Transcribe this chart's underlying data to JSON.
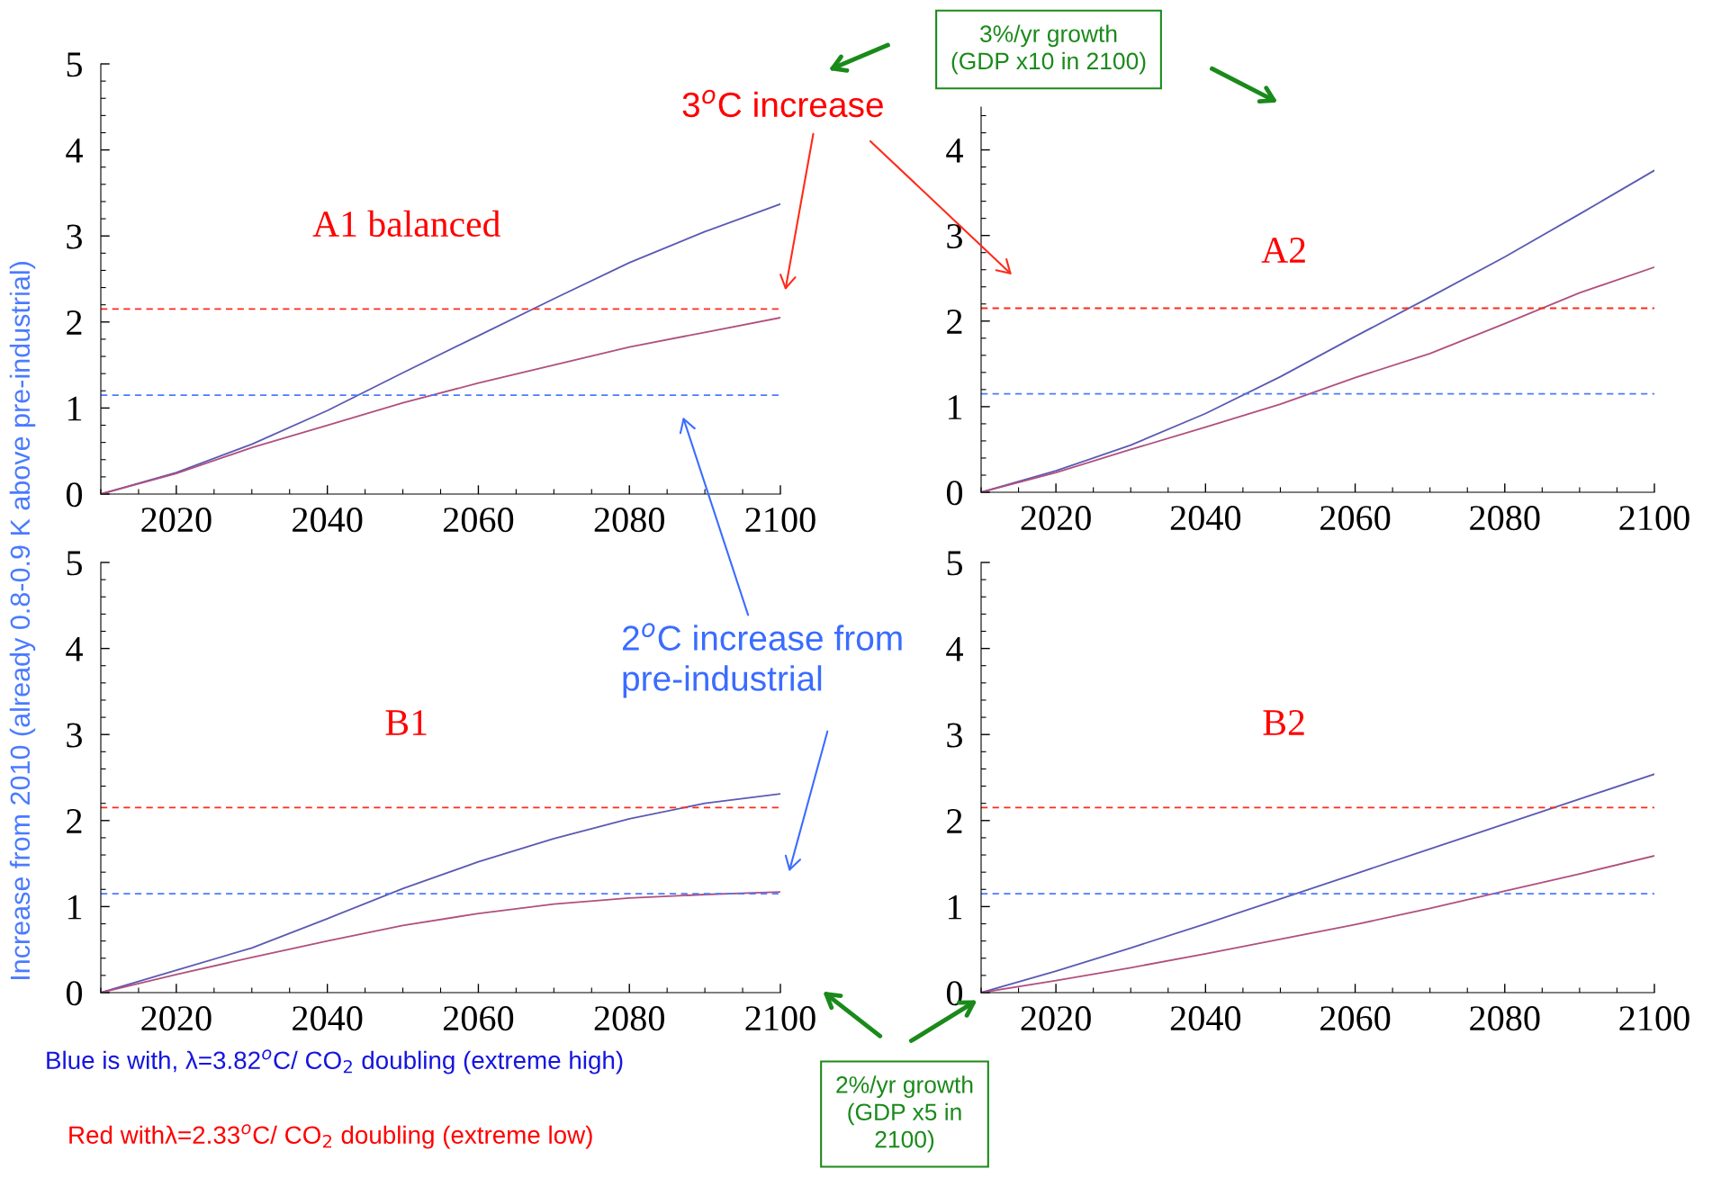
{
  "chart_data": [
    {
      "type": "line",
      "title": "A1 balanced",
      "ylabel": "Increase from 2010 (already 0.8-0.9 K above pre-industrial)",
      "annotations": [
        "3$^{o}$C increase",
        "3%/yr growth\n(GDP x10 in 2100)",
        "2$^{o}$C increase from\npre-industrial",
        "2%/yr growth\n(GDP x5 in\n2100)",
        "Blue is with, λ=3.82$^{o}$C/ CO$_{2}$ doubling (extreme high)",
        "Red withλ=2.33$^{o}$C/ CO$_{2}$ doubling (extreme low)"
      ],
      "x": [
        2010,
        2020,
        2030,
        2040,
        2050,
        2060,
        2070,
        2080,
        2090,
        2100
      ],
      "series": [
        {
          "color": "#5a5ab4",
          "values": [
            0,
            0.25,
            0.58,
            0.97,
            1.41,
            1.84,
            2.27,
            2.69,
            3.05,
            3.37
          ]
        },
        {
          "color": "#b0507f",
          "values": [
            0,
            0.24,
            0.54,
            0.8,
            1.06,
            1.29,
            1.5,
            1.71,
            1.88,
            2.05
          ]
        }
      ],
      "xlim": [
        2010,
        2100
      ],
      "xticks": [
        2020,
        2040,
        2060,
        2080,
        2100
      ],
      "ylim": [
        0,
        5
      ],
      "yticks": [
        0,
        1,
        2,
        3,
        4,
        5
      ],
      "ref_lines": [
        {
          "axis": "y",
          "value": 2.15,
          "color": "#ff2a1a",
          "line_style": "dashed"
        },
        {
          "axis": "y",
          "value": 1.15,
          "color": "#4a7aff",
          "line_style": "dashed"
        }
      ],
      "grid": false,
      "legend": false
    },
    {
      "type": "line",
      "title": "A2",
      "x": [
        2010,
        2020,
        2030,
        2040,
        2050,
        2060,
        2070,
        2080,
        2090,
        2100
      ],
      "series": [
        {
          "color": "#5a5ab4",
          "values": [
            0,
            0.25,
            0.55,
            0.92,
            1.35,
            1.82,
            2.28,
            2.75,
            3.25,
            3.76
          ]
        },
        {
          "color": "#b0507f",
          "values": [
            0,
            0.23,
            0.5,
            0.76,
            1.03,
            1.34,
            1.62,
            1.97,
            2.33,
            2.63
          ]
        }
      ],
      "xlim": [
        2010,
        2100
      ],
      "xticks": [
        2020,
        2040,
        2060,
        2080,
        2100
      ],
      "ylim": [
        0,
        4.5
      ],
      "yticks": [
        0,
        1,
        2,
        3,
        4
      ],
      "ref_lines": [
        {
          "axis": "y",
          "value": 2.15,
          "color": "#ff2a1a",
          "line_style": "dashed"
        },
        {
          "axis": "y",
          "value": 1.15,
          "color": "#4a7aff",
          "line_style": "dashed"
        }
      ],
      "grid": false,
      "legend": false
    },
    {
      "type": "line",
      "title": "B1",
      "x": [
        2010,
        2020,
        2030,
        2040,
        2050,
        2060,
        2070,
        2080,
        2090,
        2100
      ],
      "series": [
        {
          "color": "#5a5ab4",
          "values": [
            0,
            0.26,
            0.52,
            0.86,
            1.21,
            1.52,
            1.79,
            2.02,
            2.2,
            2.31
          ]
        },
        {
          "color": "#b0507f",
          "values": [
            0,
            0.21,
            0.41,
            0.6,
            0.78,
            0.92,
            1.03,
            1.1,
            1.14,
            1.17
          ]
        }
      ],
      "xlim": [
        2010,
        2100
      ],
      "xticks": [
        2020,
        2040,
        2060,
        2080,
        2100
      ],
      "ylim": [
        0,
        5
      ],
      "yticks": [
        0,
        1,
        2,
        3,
        4,
        5
      ],
      "ref_lines": [
        {
          "axis": "y",
          "value": 2.15,
          "color": "#ff2a1a",
          "line_style": "dashed"
        },
        {
          "axis": "y",
          "value": 1.15,
          "color": "#4a7aff",
          "line_style": "dashed"
        }
      ],
      "grid": false,
      "legend": false
    },
    {
      "type": "line",
      "title": "B2",
      "x": [
        2010,
        2020,
        2030,
        2040,
        2050,
        2060,
        2070,
        2080,
        2090,
        2100
      ],
      "series": [
        {
          "color": "#5a5ab4",
          "values": [
            0,
            0.25,
            0.52,
            0.8,
            1.09,
            1.38,
            1.67,
            1.96,
            2.25,
            2.54
          ]
        },
        {
          "color": "#b0507f",
          "values": [
            0,
            0.14,
            0.29,
            0.45,
            0.62,
            0.79,
            0.98,
            1.18,
            1.38,
            1.59
          ]
        }
      ],
      "xlim": [
        2010,
        2100
      ],
      "xticks": [
        2020,
        2040,
        2060,
        2080,
        2100
      ],
      "ylim": [
        0,
        5
      ],
      "yticks": [
        0,
        1,
        2,
        3,
        4,
        5
      ],
      "ref_lines": [
        {
          "axis": "y",
          "value": 2.15,
          "color": "#ff2a1a",
          "line_style": "dashed"
        },
        {
          "axis": "y",
          "value": 1.15,
          "color": "#4a7aff",
          "line_style": "dashed"
        }
      ],
      "grid": false,
      "legend": false
    }
  ]
}
